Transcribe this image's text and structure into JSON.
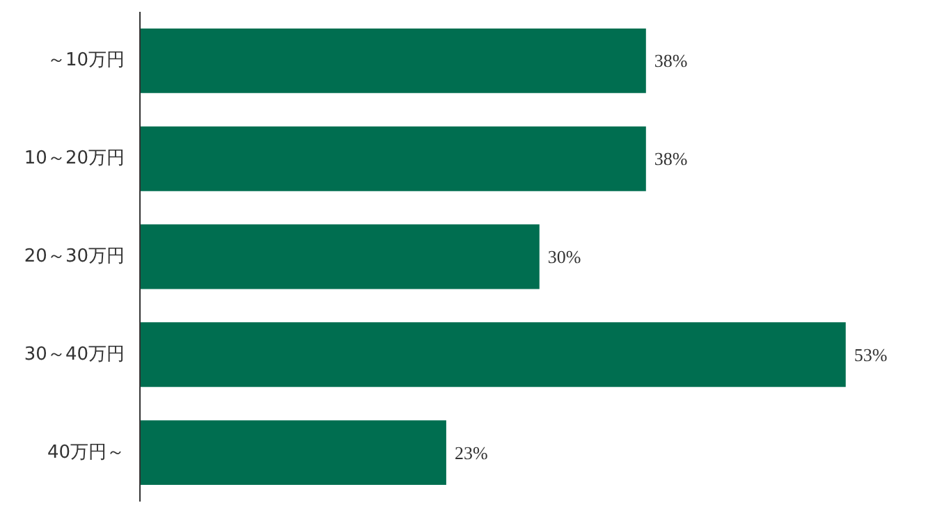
{
  "chart_data": {
    "type": "bar",
    "orientation": "horizontal",
    "categories": [
      "～10万円",
      "10～20万円",
      "20～30万円",
      "30～40万円",
      "40万円～"
    ],
    "values": [
      38,
      38,
      30,
      53,
      23
    ],
    "color": "#006e50",
    "data_labels": true,
    "value_labels": [
      "38%",
      "38%",
      "30%",
      "53%",
      "23%"
    ],
    "grid": false,
    "tick_labels": "y"
  }
}
